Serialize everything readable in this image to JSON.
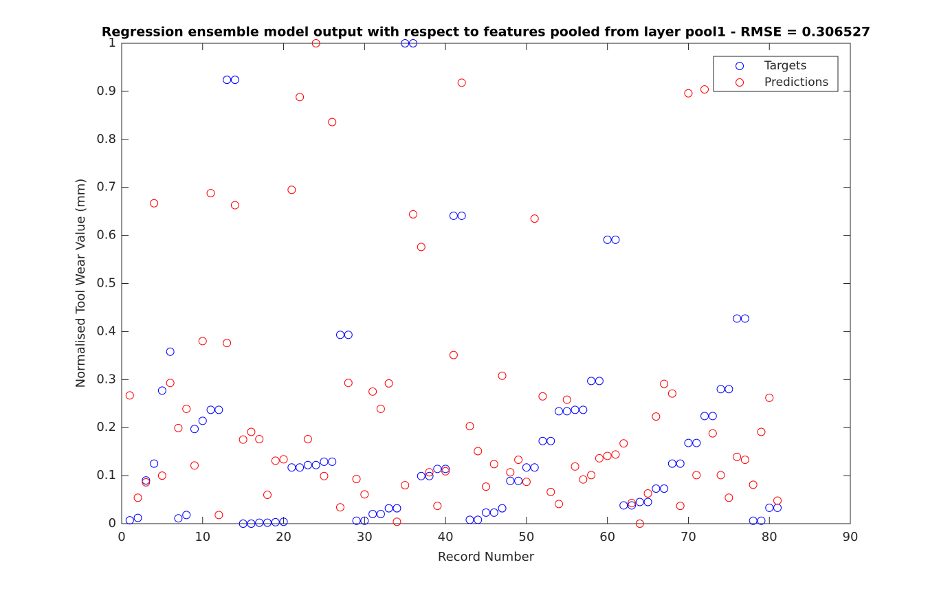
{
  "chart_data": {
    "type": "scatter",
    "title": "Regression ensemble model output with respect to features pooled from layer pool1 - RMSE = 0.306527",
    "x_label": "Record Number",
    "y_label": "Normalised Tool Wear Value (mm)",
    "x": [
      1,
      2,
      3,
      4,
      5,
      6,
      7,
      8,
      9,
      10,
      11,
      12,
      13,
      14,
      15,
      16,
      17,
      18,
      19,
      20,
      21,
      22,
      23,
      24,
      25,
      26,
      27,
      28,
      29,
      30,
      31,
      32,
      33,
      34,
      35,
      36,
      37,
      38,
      39,
      40,
      41,
      42,
      43,
      44,
      45,
      46,
      47,
      48,
      49,
      50,
      51,
      52,
      53,
      54,
      55,
      56,
      57,
      58,
      59,
      60,
      61,
      62,
      63,
      64,
      65,
      66,
      67,
      68,
      69,
      70,
      71,
      72,
      73,
      74,
      75,
      76,
      77,
      78,
      79,
      80,
      81
    ],
    "series": [
      {
        "name": "Targets",
        "color": "#0000ff",
        "values": [
          0.007,
          0.012,
          0.09,
          0.125,
          0.277,
          0.358,
          0.011,
          0.018,
          0.197,
          0.214,
          0.237,
          0.237,
          0.924,
          0.924,
          0.0,
          0.0,
          0.002,
          0.002,
          0.003,
          0.004,
          0.117,
          0.117,
          0.122,
          0.122,
          0.129,
          0.129,
          0.393,
          0.393,
          0.006,
          0.006,
          0.02,
          0.02,
          0.032,
          0.032,
          1.0,
          1.0,
          0.099,
          0.099,
          0.114,
          0.114,
          0.641,
          0.641,
          0.008,
          0.008,
          0.023,
          0.023,
          0.032,
          0.089,
          0.089,
          0.117,
          0.117,
          0.172,
          0.172,
          0.234,
          0.234,
          0.237,
          0.237,
          0.297,
          0.297,
          0.591,
          0.591,
          0.038,
          0.038,
          0.045,
          0.045,
          0.073,
          0.073,
          0.125,
          0.125,
          0.168,
          0.168,
          0.224,
          0.224,
          0.28,
          0.28,
          0.427,
          0.427,
          0.006,
          0.006,
          0.033,
          0.033
        ]
      },
      {
        "name": "Predictions",
        "color": "#ff0000",
        "values": [
          0.267,
          0.054,
          0.086,
          0.667,
          0.1,
          0.293,
          0.199,
          0.239,
          0.121,
          0.38,
          0.688,
          0.018,
          0.376,
          0.663,
          0.175,
          0.191,
          0.176,
          0.06,
          0.131,
          0.134,
          0.695,
          0.888,
          0.176,
          1.0,
          0.099,
          0.836,
          0.034,
          0.293,
          0.093,
          0.061,
          0.275,
          0.239,
          0.292,
          0.004,
          0.08,
          0.644,
          0.576,
          0.107,
          0.037,
          0.109,
          0.351,
          0.918,
          0.203,
          0.151,
          0.077,
          0.124,
          0.308,
          0.107,
          0.133,
          0.087,
          0.635,
          0.265,
          0.066,
          0.041,
          0.258,
          0.119,
          0.092,
          0.101,
          0.136,
          0.141,
          0.144,
          0.167,
          0.043,
          0.0,
          0.063,
          0.223,
          0.291,
          0.271,
          0.037,
          0.896,
          0.101,
          0.904,
          0.188,
          0.101,
          0.054,
          0.139,
          0.133,
          0.081,
          0.191,
          0.262,
          0.048
        ]
      }
    ],
    "xlim": [
      0,
      90
    ],
    "ylim": [
      0,
      1
    ],
    "xticks": [
      0,
      10,
      20,
      30,
      40,
      50,
      60,
      70,
      80,
      90
    ],
    "yticks": [
      0,
      0.1,
      0.2,
      0.3,
      0.4,
      0.5,
      0.6,
      0.7,
      0.8,
      0.9,
      1
    ],
    "legend": "top-right"
  }
}
